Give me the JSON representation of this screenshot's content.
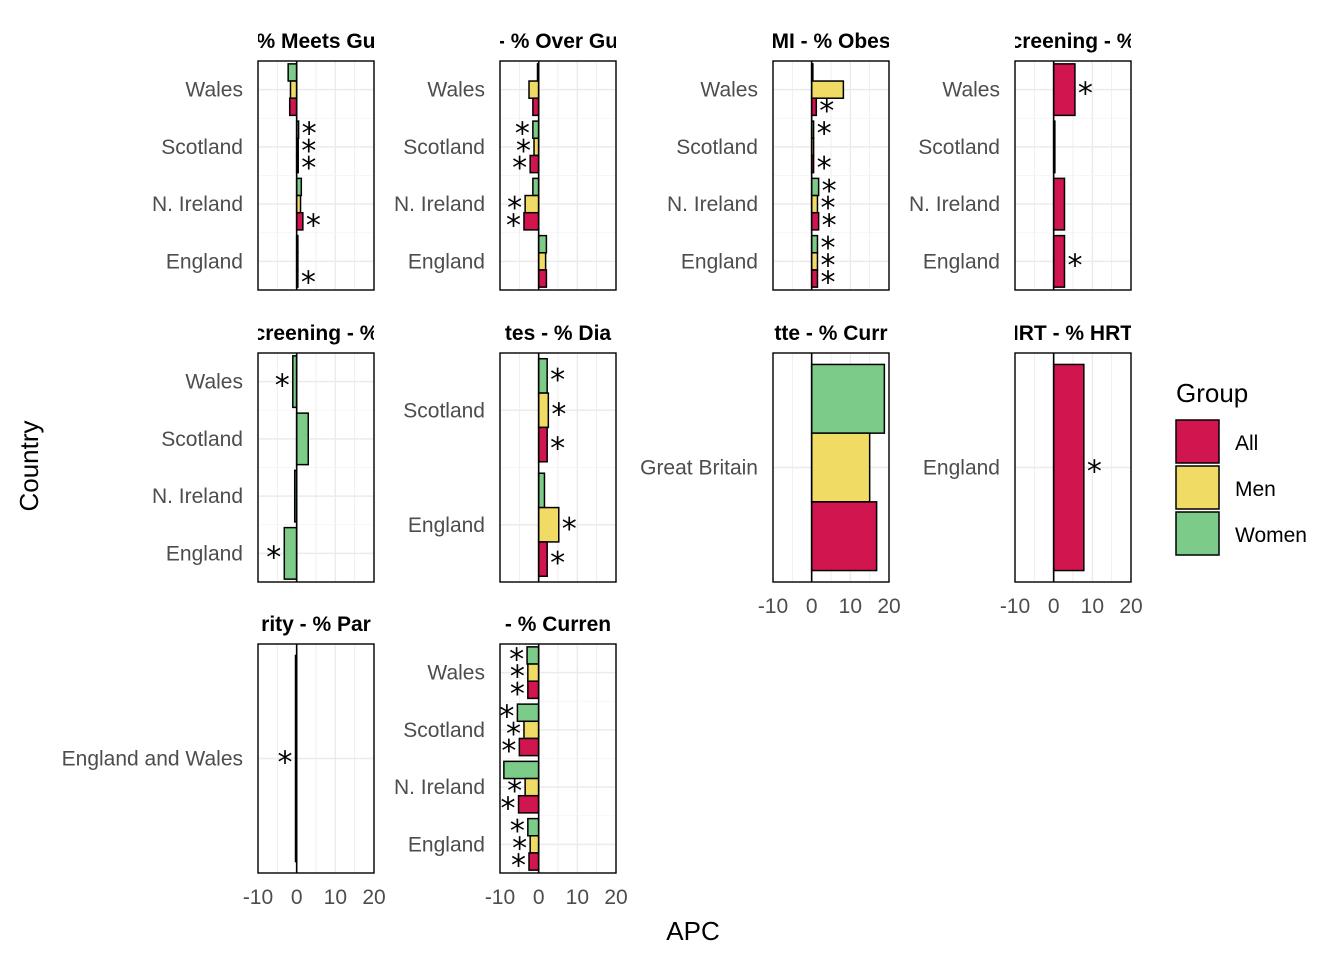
{
  "chart_data": {
    "type": "bar",
    "orientation": "horizontal",
    "xlabel": "APC",
    "ylabel": "Country",
    "xlim": [
      -10,
      20
    ],
    "xticks": [
      -10,
      0,
      10,
      20
    ],
    "grid": true,
    "legend": {
      "title": "Group",
      "placement": "right",
      "entries": [
        {
          "name": "All",
          "color": "#D1154F"
        },
        {
          "name": "Men",
          "color": "#F0DC64"
        },
        {
          "name": "Women",
          "color": "#7DCB88"
        }
      ]
    },
    "facets": [
      {
        "title": "% Meets Gu",
        "row": 0,
        "col": 0,
        "categories": [
          "Wales",
          "Scotland",
          "N. Ireland",
          "England"
        ],
        "series": [
          {
            "name": "Women",
            "values": [
              -2.2,
              0.5,
              1.2,
              0.3
            ],
            "sig": [
              false,
              true,
              false,
              false
            ]
          },
          {
            "name": "Men",
            "values": [
              -1.6,
              0.4,
              1.0,
              0.3
            ],
            "sig": [
              false,
              true,
              false,
              false
            ]
          },
          {
            "name": "All",
            "values": [
              -1.8,
              0.4,
              1.6,
              0.3
            ],
            "sig": [
              false,
              true,
              true,
              true
            ]
          }
        ]
      },
      {
        "title": "- % Over Gu",
        "row": 0,
        "col": 1,
        "categories": [
          "Wales",
          "Scotland",
          "N. Ireland",
          "England"
        ],
        "series": [
          {
            "name": "Women",
            "values": [
              -0.3,
              -1.5,
              -1.5,
              2.0
            ],
            "sig": [
              false,
              true,
              false,
              false
            ]
          },
          {
            "name": "Men",
            "values": [
              -2.5,
              -1.2,
              -3.5,
              1.8
            ],
            "sig": [
              false,
              true,
              true,
              false
            ]
          },
          {
            "name": "All",
            "values": [
              -1.5,
              -2.2,
              -3.8,
              2.0
            ],
            "sig": [
              false,
              true,
              true,
              false
            ]
          }
        ]
      },
      {
        "title": "MI - % Obes",
        "row": 0,
        "col": 2,
        "categories": [
          "Wales",
          "Scotland",
          "N. Ireland",
          "England"
        ],
        "series": [
          {
            "name": "Women",
            "values": [
              0.2,
              0.5,
              1.8,
              1.5
            ],
            "sig": [
              false,
              true,
              true,
              true
            ]
          },
          {
            "name": "Men",
            "values": [
              8.2,
              0.5,
              1.5,
              1.5
            ],
            "sig": [
              false,
              false,
              true,
              true
            ]
          },
          {
            "name": "All",
            "values": [
              1.2,
              0.5,
              1.8,
              1.5
            ],
            "sig": [
              true,
              true,
              true,
              true
            ]
          }
        ]
      },
      {
        "title": "creening - %",
        "row": 0,
        "col": 3,
        "categories": [
          "Wales",
          "Scotland",
          "N. Ireland",
          "England"
        ],
        "series": [
          {
            "name": "All",
            "values": [
              5.5,
              0.3,
              2.8,
              2.8
            ],
            "sig": [
              true,
              false,
              false,
              true
            ]
          }
        ]
      },
      {
        "title": "creening - %",
        "row": 1,
        "col": 0,
        "categories": [
          "Wales",
          "Scotland",
          "N. Ireland",
          "England"
        ],
        "series": [
          {
            "name": "Women",
            "values": [
              -1.0,
              3.0,
              -0.5,
              -3.2
            ],
            "sig": [
              true,
              false,
              false,
              true
            ]
          }
        ]
      },
      {
        "title": "tes - % Dia",
        "row": 1,
        "col": 1,
        "categories": [
          "Scotland",
          "England"
        ],
        "series": [
          {
            "name": "Women",
            "values": [
              2.2,
              1.5
            ],
            "sig": [
              true,
              false
            ]
          },
          {
            "name": "Men",
            "values": [
              2.5,
              5.2
            ],
            "sig": [
              true,
              true
            ]
          },
          {
            "name": "All",
            "values": [
              2.2,
              2.2
            ],
            "sig": [
              true,
              true
            ]
          }
        ]
      },
      {
        "title": "tte - % Curr",
        "row": 1,
        "col": 2,
        "categories": [
          "Great Britain"
        ],
        "series": [
          {
            "name": "Women",
            "values": [
              18.8
            ],
            "sig": [
              false
            ]
          },
          {
            "name": "Men",
            "values": [
              15.0
            ],
            "sig": [
              false
            ]
          },
          {
            "name": "All",
            "values": [
              16.8
            ],
            "sig": [
              false
            ]
          }
        ]
      },
      {
        "title": "IRT - % HRT",
        "row": 1,
        "col": 3,
        "categories": [
          "England"
        ],
        "series": [
          {
            "name": "All",
            "values": [
              7.8
            ],
            "sig": [
              true
            ]
          }
        ]
      },
      {
        "title": "rity - % Par",
        "row": 2,
        "col": 0,
        "categories": [
          "England and Wales"
        ],
        "series": [
          {
            "name": "All",
            "values": [
              -0.3
            ],
            "sig": [
              true
            ]
          }
        ]
      },
      {
        "title": "- % Curren",
        "row": 2,
        "col": 1,
        "categories": [
          "Wales",
          "Scotland",
          "N. Ireland",
          "England"
        ],
        "series": [
          {
            "name": "Women",
            "values": [
              -3.0,
              -5.5,
              -9.0,
              -2.8
            ],
            "sig": [
              true,
              true,
              false,
              true
            ]
          },
          {
            "name": "Men",
            "values": [
              -2.8,
              -3.8,
              -3.5,
              -2.2
            ],
            "sig": [
              true,
              true,
              true,
              true
            ]
          },
          {
            "name": "All",
            "values": [
              -2.8,
              -5.0,
              -5.2,
              -2.5
            ],
            "sig": [
              true,
              true,
              true,
              true
            ]
          }
        ]
      }
    ]
  }
}
